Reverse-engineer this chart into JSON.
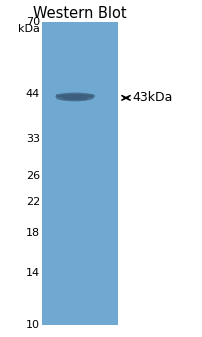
{
  "title": "Western Blot",
  "title_fontsize": 10.5,
  "title_color": "#000000",
  "kda_label": "kDa",
  "marker_labels": [
    "70",
    "44",
    "33",
    "26",
    "22",
    "18",
    "14",
    "10"
  ],
  "marker_positions": [
    70,
    44,
    33,
    26,
    22,
    18,
    14,
    10
  ],
  "band_label": "← 43kDa",
  "band_kda": 43,
  "gel_bg_color": "#6fa8d0",
  "band_color": "#3a5a78",
  "fig_width": 2.03,
  "fig_height": 3.37,
  "dpi": 100,
  "bg_color": "#ffffff",
  "marker_fontsize": 8,
  "arrow_label_fontsize": 9,
  "kda_fontsize": 8
}
